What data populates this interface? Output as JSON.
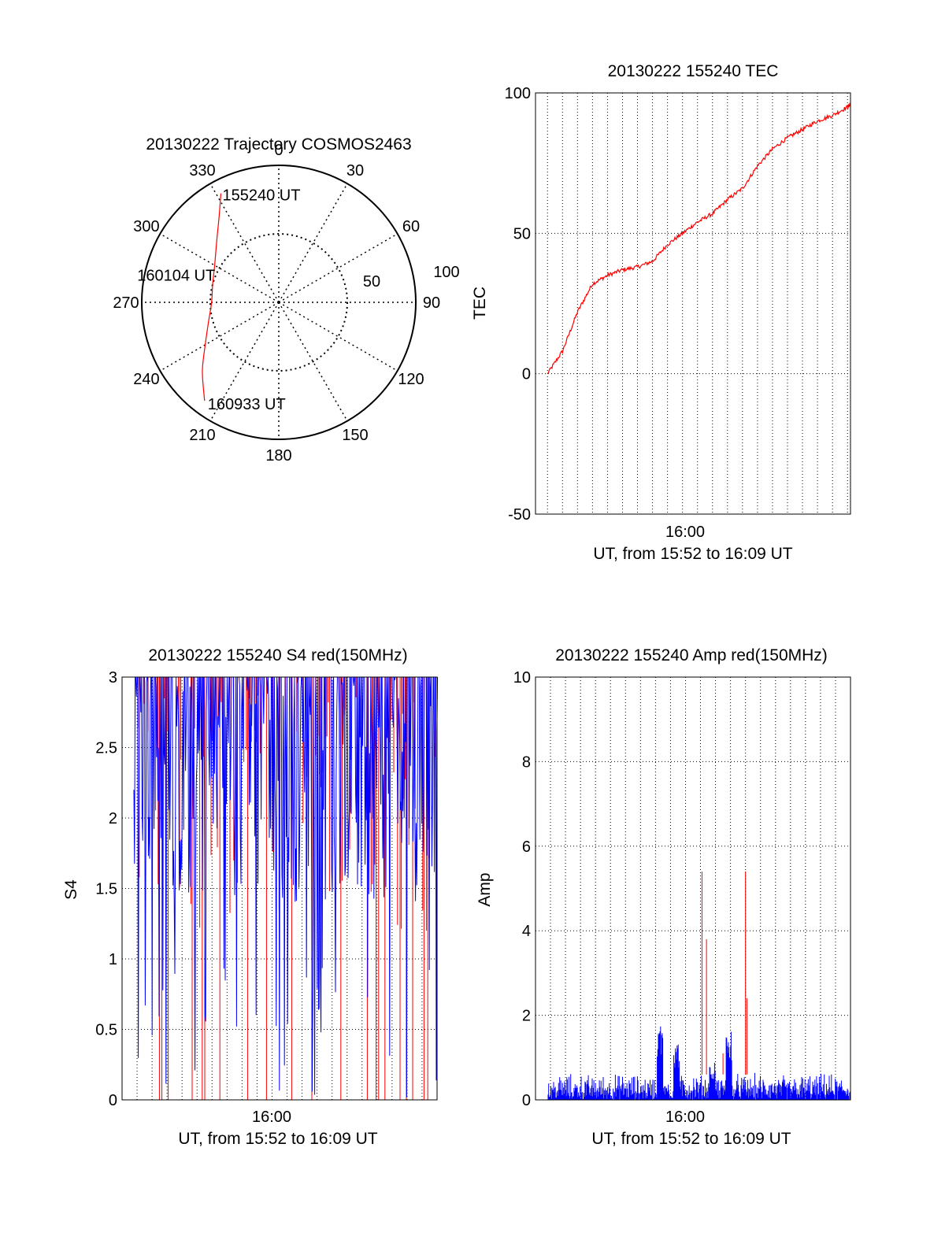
{
  "colors": {
    "red": "#ff0000",
    "blue": "#0000ff",
    "axis": "#000000",
    "grid": "#000000",
    "background": "#ffffff"
  },
  "chart_data": [
    {
      "type": "polar",
      "title": "20130222 Trajectory COSMOS2463",
      "angle_ticks": [
        "0",
        "30",
        "60",
        "90",
        "120",
        "150",
        "180",
        "210",
        "240",
        "270",
        "300",
        "330"
      ],
      "radial_ticks": [
        "50",
        "100"
      ],
      "radial_range": [
        0,
        100
      ],
      "angle_zero": "top",
      "grid": true,
      "series": [
        {
          "color": "red",
          "points": [
            [
              332,
              90
            ],
            [
              325,
              76
            ],
            [
              315,
              64
            ],
            [
              300,
              54
            ],
            [
              285,
              50
            ],
            [
              270,
              49
            ],
            [
              255,
              53
            ],
            [
              240,
              62
            ],
            [
              228,
              75
            ],
            [
              217,
              90
            ]
          ]
        }
      ],
      "annotations": [
        {
          "text": "155240 UT",
          "azimuth": 332,
          "r": 90
        },
        {
          "text": "160104 UT",
          "azimuth": 283,
          "r": 50
        },
        {
          "text": "160933 UT",
          "azimuth": 217,
          "r": 90
        }
      ]
    },
    {
      "type": "line",
      "title": "20130222 155240 TEC",
      "xlabel": "UT, from 15:52 to 16:09 UT",
      "ylabel": "TEC",
      "x_tick_labels": [
        "16:00"
      ],
      "y_tick_labels": [
        "-50",
        "0",
        "50",
        "100"
      ],
      "xlim_minutes": [
        15.2,
        36.2
      ],
      "ylim": [
        -50,
        100
      ],
      "grid": true,
      "series": [
        {
          "color": "red",
          "x": [
            16.0,
            17.0,
            18.0,
            19.0,
            20.0,
            21.0,
            22.0,
            23.0,
            24.0,
            25.0,
            26.0,
            27.0,
            28.0,
            29.0,
            30.0,
            31.0,
            32.0,
            33.0,
            34.0,
            35.0,
            36.0,
            36.2
          ],
          "y": [
            0,
            8,
            22,
            32,
            35,
            37,
            38,
            40,
            46,
            50,
            54,
            57,
            62,
            66,
            74,
            80,
            84,
            87,
            90,
            92,
            95,
            96
          ]
        }
      ]
    },
    {
      "type": "line",
      "title": "20130222 155240 S4 red(150MHz)",
      "xlabel": "UT, from 15:52 to 16:09 UT",
      "ylabel": "S4",
      "x_tick_labels": [
        "16:00"
      ],
      "y_tick_labels": [
        "0",
        "0.5",
        "1",
        "1.5",
        "2",
        "2.5",
        "3"
      ],
      "xlim_minutes": [
        51.0,
        72.0
      ],
      "ylim": [
        0,
        3
      ],
      "grid": true,
      "series": [
        {
          "color": "blue",
          "description_ref": "dense noisy S4 trace, mostly 1.5 to 3"
        },
        {
          "color": "red",
          "description_ref": "spikes spanning 0 to 3"
        }
      ]
    },
    {
      "type": "line",
      "title": "20130222 155240 Amp red(150MHz)",
      "xlabel": "UT, from 15:52 to 16:09 UT",
      "ylabel": "Amp",
      "x_tick_labels": [
        "16:00"
      ],
      "y_tick_labels": [
        "0",
        "2",
        "4",
        "6",
        "8",
        "10"
      ],
      "xlim_minutes": [
        51.0,
        72.0
      ],
      "ylim": [
        0,
        10
      ],
      "grid": true,
      "series": [
        {
          "color": "blue",
          "baseline_max": 0.6,
          "bursts": [
            [
              59.3,
              1.9
            ],
            [
              60.4,
              1.4
            ],
            [
              62.8,
              0.9
            ],
            [
              63.9,
              1.8
            ]
          ]
        },
        {
          "color": "red",
          "spikes": [
            [
              62.1,
              5.4
            ],
            [
              62.4,
              3.8
            ],
            [
              63.5,
              1.1
            ],
            [
              65.0,
              5.4
            ],
            [
              65.1,
              2.4
            ]
          ]
        }
      ]
    }
  ]
}
